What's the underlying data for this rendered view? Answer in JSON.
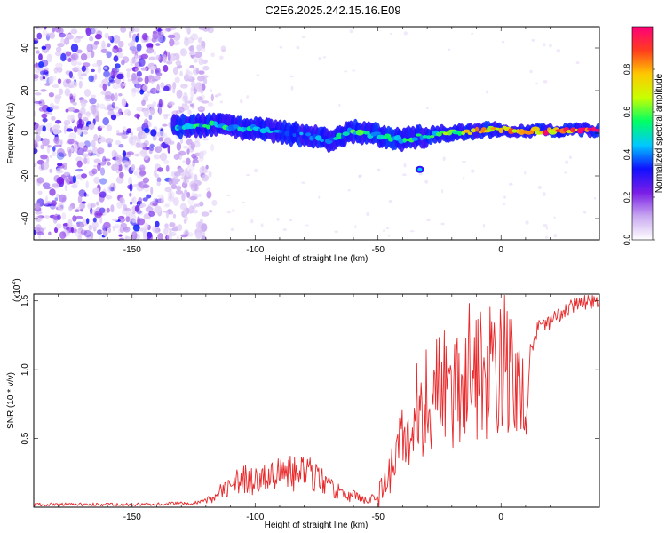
{
  "title": "C2E6.2025.242.15.16.E09",
  "chart_data": [
    {
      "type": "heatmap",
      "xlabel": "Height of straight line (km)",
      "ylabel": "Frequency (Hz)",
      "xlim": [
        -190,
        40
      ],
      "ylim": [
        -50,
        50
      ],
      "xticks": [
        -150,
        -100,
        -50,
        0
      ],
      "yticks": [
        -40,
        -20,
        0,
        20,
        40
      ],
      "colorbar": {
        "label": "Normalized spectral amplitude",
        "range": [
          0,
          1
        ],
        "ticks": [
          "0.0",
          "0.2",
          "0.4",
          "0.6",
          "0.8"
        ],
        "tick_values": [
          0.0,
          0.2,
          0.4,
          0.6,
          0.8
        ],
        "colors": [
          "#ffffff",
          "#c8a8f0",
          "#7a1ee6",
          "#1010ff",
          "#00c8ff",
          "#00ff64",
          "#c8ff00",
          "#ffc800",
          "#ff3c1e",
          "#ff0078"
        ]
      },
      "annotations": [
        "Broadband noise for heights below about -120 km",
        "Narrow spectral line near 0 Hz from about -130 km to 40 km, strongest above about -20 km",
        "Small isolated feature near -33 km, -17 Hz"
      ],
      "ridge": {
        "x": [
          -133,
          -120,
          -100,
          -80,
          -70,
          -60,
          -50,
          -40,
          -30,
          -20,
          -10,
          0,
          10,
          20,
          30,
          40
        ],
        "frequency": [
          3,
          4,
          2,
          -1,
          -3,
          1,
          -1,
          -3,
          -1,
          0,
          1,
          2,
          1,
          1,
          2,
          1
        ],
        "amplitude": [
          0.45,
          0.5,
          0.45,
          0.4,
          0.4,
          0.55,
          0.5,
          0.5,
          0.55,
          0.6,
          0.7,
          0.75,
          0.8,
          0.85,
          0.9,
          0.92
        ]
      }
    },
    {
      "type": "line",
      "xlabel": "Height of straight line (km)",
      "ylabel": "SNR (10 * v/v)",
      "yscale_note": "(x10",
      "yscale_exp": "4",
      "xlim": [
        -190,
        40
      ],
      "ylim": [
        0,
        1.55
      ],
      "xticks": [
        -150,
        -100,
        -50,
        0
      ],
      "yticks": [
        0.5,
        1.0,
        1.5
      ],
      "ytick_labels": [
        "0.5",
        "1.0",
        "1.5"
      ],
      "series": [
        {
          "name": "SNR",
          "color": "#e8282a",
          "x": [
            -190,
            -150,
            -125,
            -118,
            -112,
            -105,
            -100,
            -95,
            -90,
            -85,
            -80,
            -75,
            -70,
            -65,
            -60,
            -55,
            -50,
            -45,
            -42,
            -38,
            -35,
            -30,
            -25,
            -20,
            -15,
            -10,
            -5,
            0,
            5,
            8,
            10,
            12,
            15,
            20,
            25,
            30,
            35,
            40
          ],
          "values": [
            0.02,
            0.02,
            0.03,
            0.06,
            0.14,
            0.2,
            0.18,
            0.22,
            0.25,
            0.24,
            0.25,
            0.22,
            0.15,
            0.1,
            0.08,
            0.05,
            0.08,
            0.25,
            0.45,
            0.55,
            0.62,
            0.7,
            0.75,
            0.82,
            0.86,
            0.95,
            1.0,
            1.05,
            1.1,
            1.0,
            0.5,
            1.15,
            1.3,
            1.35,
            1.42,
            1.46,
            1.5,
            1.5
          ]
        }
      ]
    }
  ]
}
